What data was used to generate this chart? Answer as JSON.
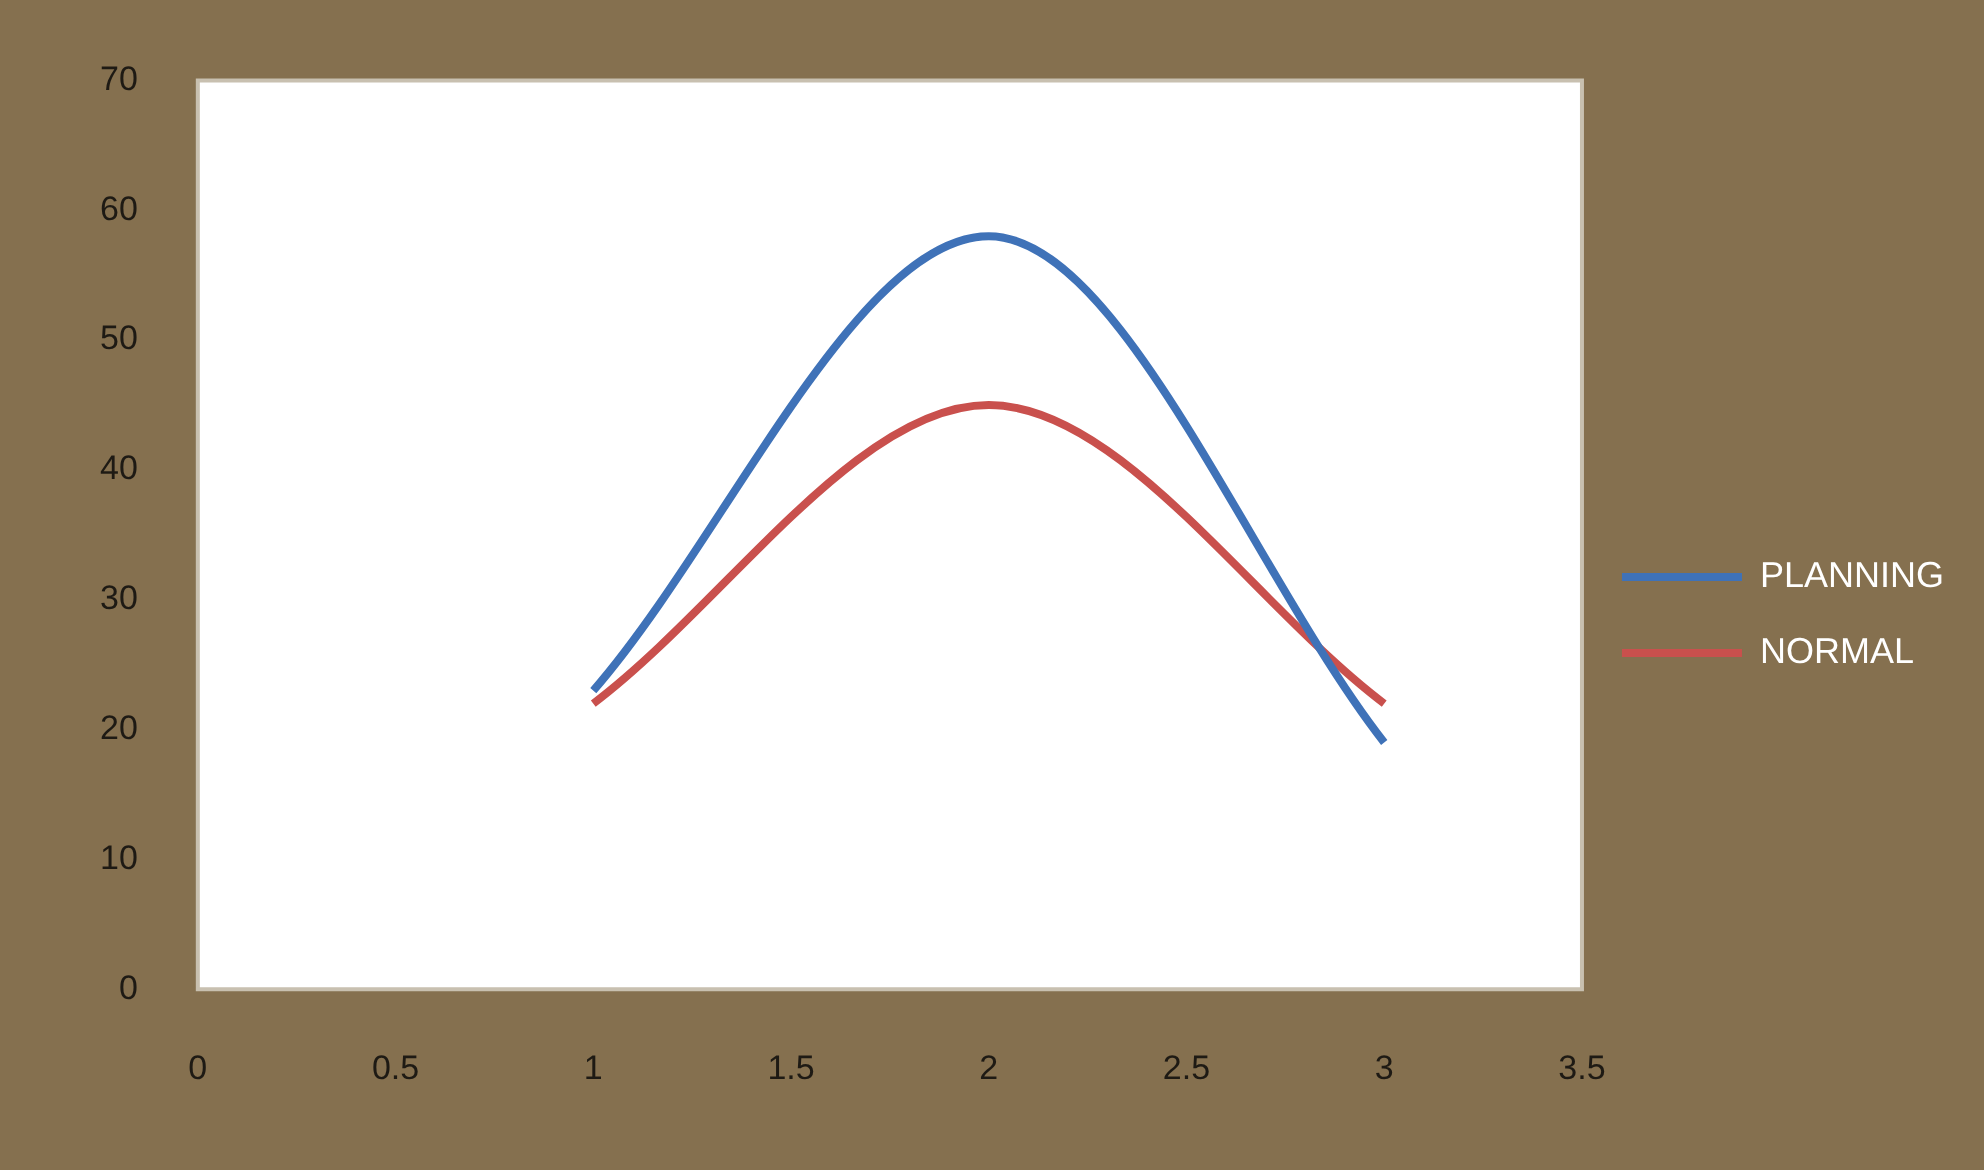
{
  "chart_data": {
    "type": "line",
    "x": [
      1,
      2,
      3
    ],
    "series": [
      {
        "name": "PLANNING",
        "color": "#3f72b8",
        "values": [
          23,
          58,
          19
        ]
      },
      {
        "name": "NORMAL",
        "color": "#c9504d",
        "values": [
          22,
          45,
          22
        ]
      }
    ],
    "xlim": [
      0,
      3.5
    ],
    "xticks": [
      0,
      0.5,
      1,
      1.5,
      2,
      2.5,
      3,
      3.5
    ],
    "ylim": [
      0,
      70
    ],
    "yticks": [
      0,
      10,
      20,
      30,
      40,
      50,
      60,
      70
    ],
    "grid": false,
    "legend": "right",
    "marker": "none",
    "line_style": "solid"
  }
}
